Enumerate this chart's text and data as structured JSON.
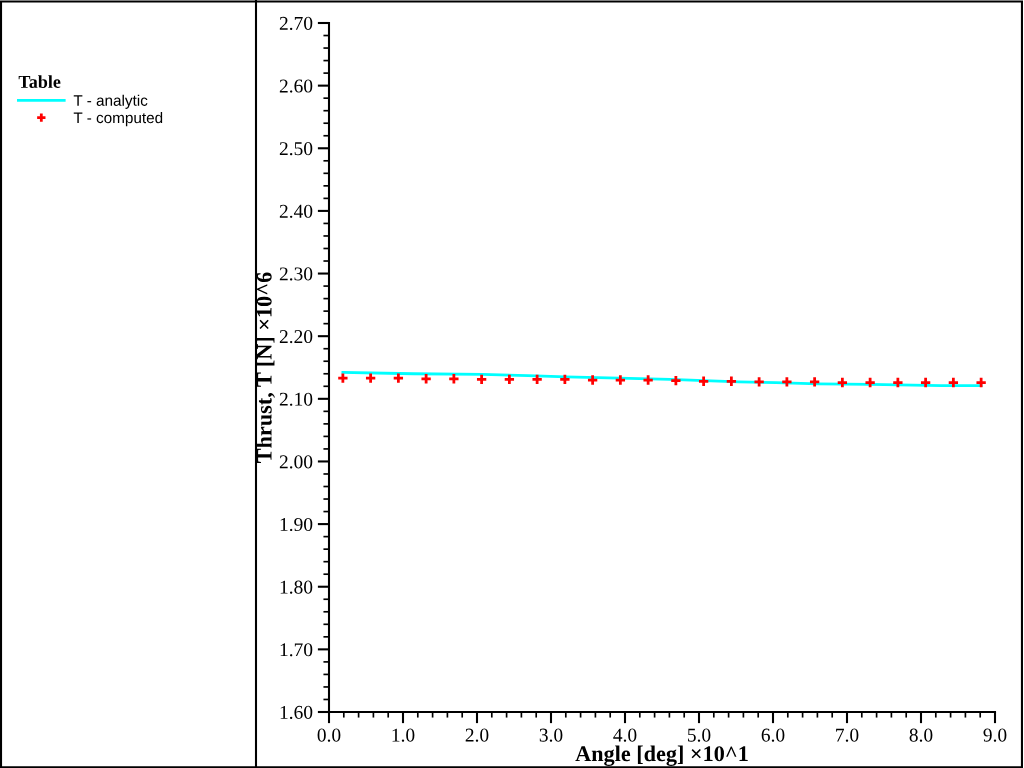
{
  "chart_data": {
    "type": "line",
    "xlabel": "Angle [deg] ×10^1",
    "ylabel": "Thrust, T [N] ×10^6",
    "legend_title": "Table",
    "xlim": [
      0,
      9
    ],
    "ylim": [
      1.6,
      2.7
    ],
    "xticks": [
      {
        "value": 0,
        "label": "0.0"
      },
      {
        "value": 1,
        "label": "1.0"
      },
      {
        "value": 2,
        "label": "2.0"
      },
      {
        "value": 3,
        "label": "3.0"
      },
      {
        "value": 4,
        "label": "4.0"
      },
      {
        "value": 5,
        "label": "5.0"
      },
      {
        "value": 6,
        "label": "6.0"
      },
      {
        "value": 7,
        "label": "7.0"
      },
      {
        "value": 8,
        "label": "8.0"
      },
      {
        "value": 9,
        "label": "9.0"
      }
    ],
    "yticks": [
      {
        "value": 1.6,
        "label": "1.60"
      },
      {
        "value": 1.7,
        "label": "1.70"
      },
      {
        "value": 1.8,
        "label": "1.80"
      },
      {
        "value": 1.9,
        "label": "1.90"
      },
      {
        "value": 2.0,
        "label": "2.00"
      },
      {
        "value": 2.1,
        "label": "2.10"
      },
      {
        "value": 2.2,
        "label": "2.20"
      },
      {
        "value": 2.3,
        "label": "2.30"
      },
      {
        "value": 2.4,
        "label": "2.40"
      },
      {
        "value": 2.5,
        "label": "2.50"
      },
      {
        "value": 2.6,
        "label": "2.60"
      },
      {
        "value": 2.7,
        "label": "2.70"
      }
    ],
    "legend": "left",
    "series": [
      {
        "name": "T - analytic",
        "color": "#00ffff",
        "line_style": "solid",
        "x": [
          0.1875,
          1.14,
          2.07,
          2.69,
          3.2,
          3.92,
          4.61,
          5.07,
          5.54,
          6.04,
          6.61,
          7.31,
          8.27,
          8.8125
        ],
        "values": [
          2.142,
          2.14,
          2.139,
          2.137,
          2.135,
          2.133,
          2.131,
          2.129,
          2.127,
          2.126,
          2.124,
          2.123,
          2.121,
          2.121
        ]
      },
      {
        "name": "T - computed",
        "type": "scatter",
        "color": "#ff0000",
        "marker": "cross",
        "x": [
          0.1875,
          0.5625,
          0.9375,
          1.3125,
          1.6875,
          2.0625,
          2.4375,
          2.8125,
          3.1875,
          3.5625,
          3.9375,
          4.3125,
          4.6875,
          5.0625,
          5.4375,
          5.8125,
          6.1875,
          6.5625,
          6.9375,
          7.3125,
          7.6875,
          8.0625,
          8.4375,
          8.8125
        ],
        "values": [
          2.133,
          2.133,
          2.133,
          2.132,
          2.132,
          2.131,
          2.131,
          2.131,
          2.131,
          2.13,
          2.13,
          2.13,
          2.129,
          2.128,
          2.128,
          2.127,
          2.127,
          2.127,
          2.126,
          2.126,
          2.126,
          2.126,
          2.126,
          2.126
        ]
      }
    ]
  }
}
